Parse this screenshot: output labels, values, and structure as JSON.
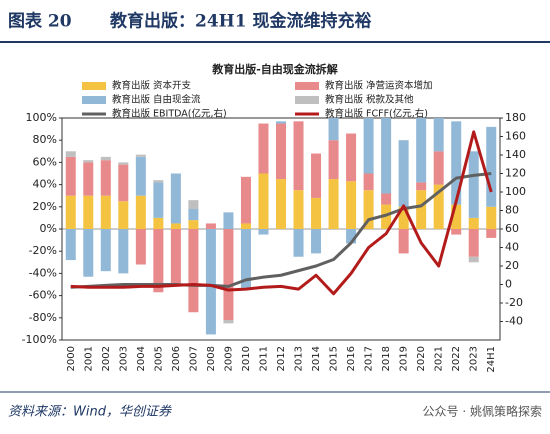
{
  "header": {
    "label": "图表 20",
    "title": "教育出版：24H1 现金流维持充裕"
  },
  "footer": {
    "source": "资料来源：Wind，华创证券",
    "watermark": "公众号 · 姚佩策略探索"
  },
  "chart_data": {
    "type": "bar",
    "stacked": true,
    "title": "教育出版-自由现金流拆解",
    "categories": [
      "2000",
      "2001",
      "2002",
      "2003",
      "2004",
      "2005",
      "2006",
      "2007",
      "2008",
      "2009",
      "2010",
      "2011",
      "2012",
      "2013",
      "2014",
      "2015",
      "2016",
      "2017",
      "2018",
      "2019",
      "2020",
      "2021",
      "2022",
      "2023",
      "24H1"
    ],
    "series": [
      {
        "name": "教育出版 资本开支",
        "color": "#f5c342",
        "values": [
          30,
          30,
          30,
          25,
          30,
          10,
          5,
          8,
          0,
          0,
          5,
          50,
          45,
          35,
          28,
          45,
          43,
          35,
          22,
          20,
          35,
          40,
          22,
          10,
          20
        ]
      },
      {
        "name": "教育出版 净营运资本增加",
        "color": "#e8898b",
        "values": [
          35,
          30,
          32,
          33,
          -32,
          -57,
          -50,
          -75,
          5,
          -82,
          42,
          45,
          50,
          62,
          40,
          35,
          43,
          15,
          10,
          -22,
          7,
          30,
          -5,
          -25,
          -8
        ]
      },
      {
        "name": "教育出版 自由现金流",
        "color": "#92b8d8",
        "values": [
          -28,
          -43,
          -38,
          -40,
          35,
          32,
          45,
          10,
          -95,
          15,
          -53,
          -5,
          2,
          -25,
          -22,
          20,
          -13,
          50,
          68,
          60,
          58,
          30,
          75,
          60,
          72
        ]
      },
      {
        "name": "教育出版 税款及其他",
        "color": "#bfbfbf",
        "values": [
          5,
          2,
          3,
          2,
          2,
          2,
          0,
          8,
          0,
          -3,
          0,
          0,
          0,
          0,
          0,
          0,
          0,
          0,
          0,
          0,
          0,
          0,
          0,
          -5,
          0
        ]
      },
      {
        "name": "教育出版 EBITDA(亿元,右)",
        "color": "#606060",
        "type": "line",
        "axis": "y2",
        "values": [
          -3,
          -2,
          -1,
          0,
          0,
          0,
          0,
          -1,
          -1,
          -2,
          5,
          8,
          10,
          15,
          20,
          27,
          45,
          70,
          75,
          82,
          85,
          100,
          115,
          118,
          120
        ]
      },
      {
        "name": "教育出版 FCFF(亿元,右)",
        "color": "#b31b1b",
        "type": "line",
        "axis": "y2",
        "values": [
          -2,
          -3,
          -3,
          -3,
          -2,
          -2,
          -1,
          0,
          -1,
          -6,
          -5,
          -3,
          -2,
          -5,
          10,
          -10,
          12,
          40,
          55,
          85,
          45,
          20,
          90,
          165,
          100
        ]
      }
    ],
    "ylim": [
      -100,
      100
    ],
    "yticks": [
      {
        "value": -100,
        "label": "-100%"
      },
      {
        "value": -80,
        "label": "-80%"
      },
      {
        "value": -60,
        "label": "-60%"
      },
      {
        "value": -40,
        "label": "-40%"
      },
      {
        "value": -20,
        "label": "-20%"
      },
      {
        "value": 0,
        "label": "0%"
      },
      {
        "value": 20,
        "label": "20%"
      },
      {
        "value": 40,
        "label": "40%"
      },
      {
        "value": 60,
        "label": "60%"
      },
      {
        "value": 80,
        "label": "80%"
      },
      {
        "value": 100,
        "label": "100%"
      }
    ],
    "y2lim": [
      -60,
      180
    ],
    "y2ticks": [
      -40,
      -20,
      0,
      20,
      40,
      60,
      80,
      100,
      120,
      140,
      160,
      180
    ]
  }
}
